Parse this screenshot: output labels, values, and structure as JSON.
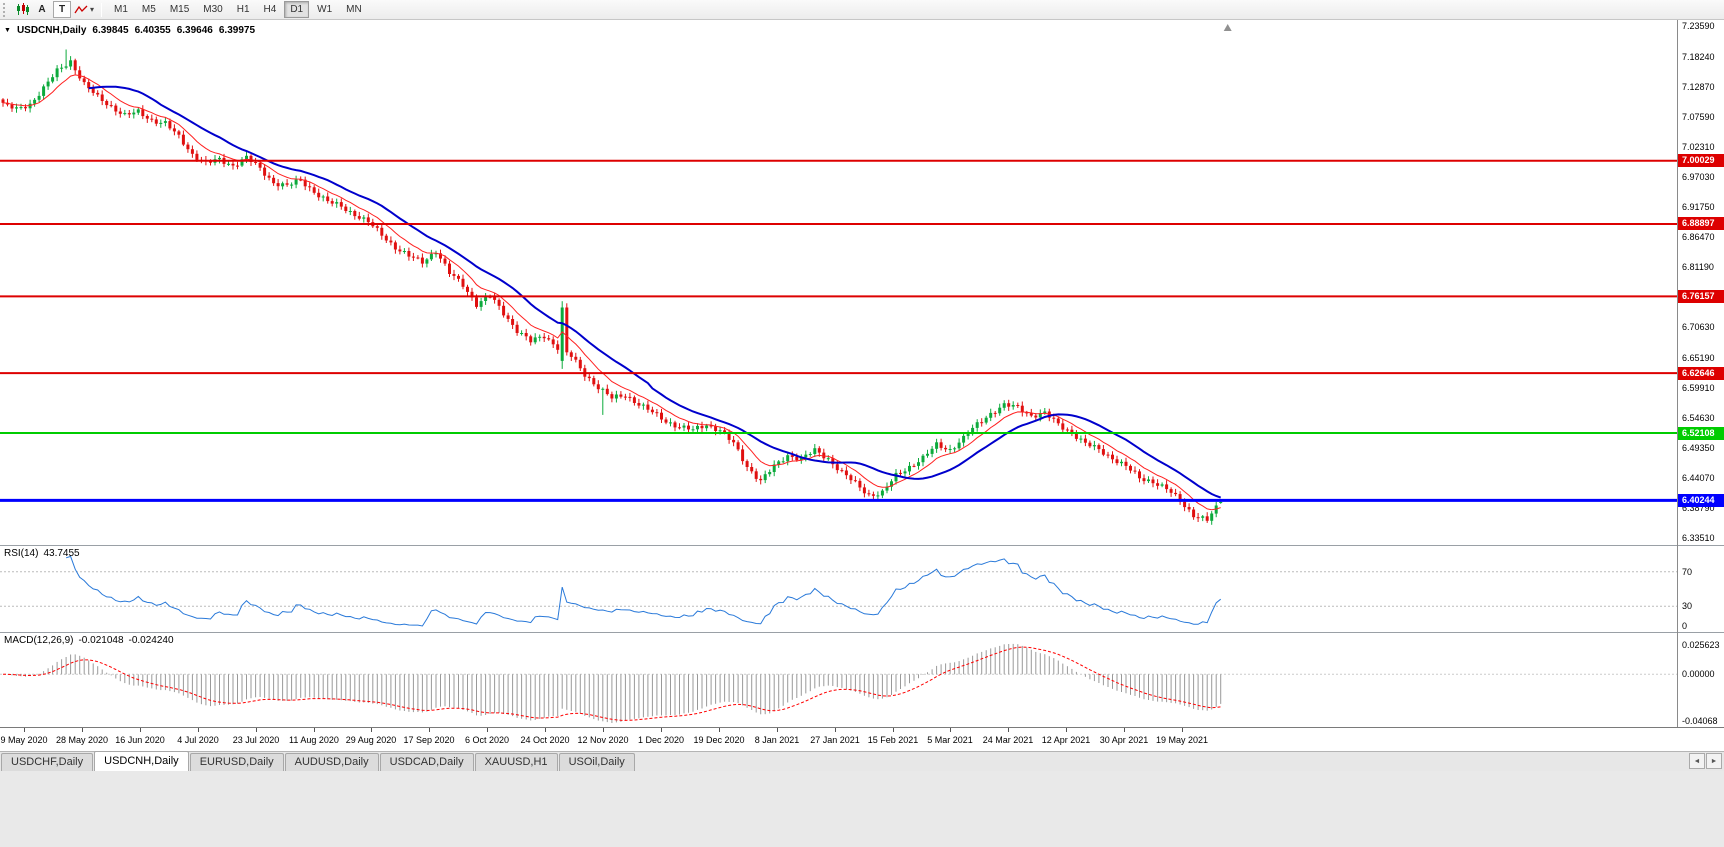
{
  "toolbar": {
    "tool_a": "A",
    "tool_t": "T",
    "timeframes": [
      "M1",
      "M5",
      "M15",
      "M30",
      "H1",
      "H4",
      "D1",
      "W1",
      "MN"
    ],
    "active_timeframe": "D1"
  },
  "chart_header": {
    "collapse_marker": "▼",
    "symbol": "USDCNH,Daily",
    "open": "6.39845",
    "high": "6.40355",
    "low": "6.39646",
    "close": "6.39975"
  },
  "rsi_pane": {
    "name": "RSI(14)",
    "value": "43.7455",
    "axis_labels": [
      "70",
      "30",
      "0"
    ]
  },
  "macd_pane": {
    "name": "MACD(12,26,9)",
    "value_main": "-0.021048",
    "value_signal": "-0.024240",
    "axis_labels": [
      "0.025623",
      "0.00000",
      "-0.04068"
    ]
  },
  "tabs": {
    "items": [
      "USDCHF,Daily",
      "USDCNH,Daily",
      "EURUSD,Daily",
      "AUDUSD,Daily",
      "USDCAD,Daily",
      "XAUUSD,H1",
      "USOil,Daily"
    ],
    "active": "USDCNH,Daily",
    "scroll_left": "◄",
    "scroll_right": "►"
  },
  "chart_data": {
    "type": "candlestick",
    "symbol": "USDCNH",
    "period": "Daily",
    "title": "USDCNH,Daily",
    "price_range": [
      6.324,
      7.248
    ],
    "price_axis_labels": [
      "7.23590",
      "7.18240",
      "7.12870",
      "7.07590",
      "7.02310",
      "6.97030",
      "6.91750",
      "6.86470",
      "6.81190",
      "6.75910",
      "6.70630",
      "6.65190",
      "6.59910",
      "6.54630",
      "6.49350",
      "6.44070",
      "6.38790",
      "6.33510"
    ],
    "levels": [
      {
        "value": 7.00029,
        "label": "7.00029",
        "color": "#dd0000",
        "width": 2
      },
      {
        "value": 6.88897,
        "label": "6.88897",
        "color": "#dd0000",
        "width": 2
      },
      {
        "value": 6.76157,
        "label": "6.76157",
        "color": "#dd0000",
        "width": 2
      },
      {
        "value": 6.62646,
        "label": "6.62646",
        "color": "#dd0000",
        "width": 2
      },
      {
        "value": 6.52108,
        "label": "6.52108",
        "color": "#00cc00",
        "width": 2
      },
      {
        "value": 6.40244,
        "label": "6.40244",
        "color": "#0000ff",
        "width": 3
      }
    ],
    "date_labels": [
      "9 May 2020",
      "28 May 2020",
      "16 Jun 2020",
      "4 Jul 2020",
      "23 Jul 2020",
      "11 Aug 2020",
      "29 Aug 2020",
      "17 Sep 2020",
      "6 Oct 2020",
      "24 Oct 2020",
      "12 Nov 2020",
      "1 Dec 2020",
      "19 Dec 2020",
      "8 Jan 2021",
      "27 Jan 2021",
      "15 Feb 2021",
      "5 Mar 2021",
      "24 Mar 2021",
      "12 Apr 2021",
      "30 Apr 2021",
      "19 May 2021"
    ],
    "bars_per_anchor": 3,
    "close_anchors": [
      7.1,
      7.09,
      7.1,
      7.128,
      7.158,
      7.176,
      7.135,
      7.112,
      7.096,
      7.08,
      7.086,
      7.072,
      7.066,
      7.042,
      7.012,
      6.996,
      7.002,
      6.992,
      7.006,
      6.986,
      6.962,
      6.956,
      6.966,
      6.946,
      6.928,
      6.92,
      6.906,
      6.892,
      6.87,
      6.848,
      6.832,
      6.822,
      6.842,
      6.802,
      6.782,
      6.748,
      6.762,
      6.732,
      6.702,
      6.682,
      6.692,
      6.672,
      6.656,
      6.624,
      6.602,
      6.582,
      6.588,
      6.572,
      6.557,
      6.542,
      6.532,
      6.526,
      6.536,
      6.526,
      6.502,
      6.462,
      6.437,
      6.462,
      6.482,
      6.476,
      6.49,
      6.476,
      6.452,
      6.432,
      6.412,
      6.416,
      6.446,
      6.462,
      6.477,
      6.5,
      6.492,
      6.512,
      6.536,
      6.556,
      6.57,
      6.566,
      6.552,
      6.556,
      6.536,
      6.522,
      6.502,
      6.492,
      6.477,
      6.462,
      6.442,
      6.436,
      6.422,
      6.402,
      6.377,
      6.367,
      6.4
    ],
    "overrides": {
      "14": {
        "h": 7.196
      },
      "124": {
        "o": 6.648,
        "c": 6.742,
        "h": 6.753,
        "l": 6.634
      },
      "133": {
        "l": 6.553
      },
      "270": {
        "o": 6.39845,
        "h": 6.40355,
        "l": 6.39646,
        "c": 6.39975
      }
    },
    "up_color": "#0caa3c",
    "down_color": "#e01010",
    "ma_fast": {
      "period": 9,
      "color": "#ff2020",
      "width": 1
    },
    "ma_slow": {
      "period": 20,
      "color": "#0000cc",
      "width": 2
    },
    "rsi": {
      "period": 14,
      "color": "#2979d9",
      "levels": [
        70,
        30
      ],
      "range": [
        0,
        100
      ]
    },
    "macd": {
      "fast": 12,
      "slow": 26,
      "signal": 9,
      "hist_color": "#999999",
      "signal_color": "#ff0000",
      "range": [
        -0.046,
        0.036
      ]
    }
  }
}
